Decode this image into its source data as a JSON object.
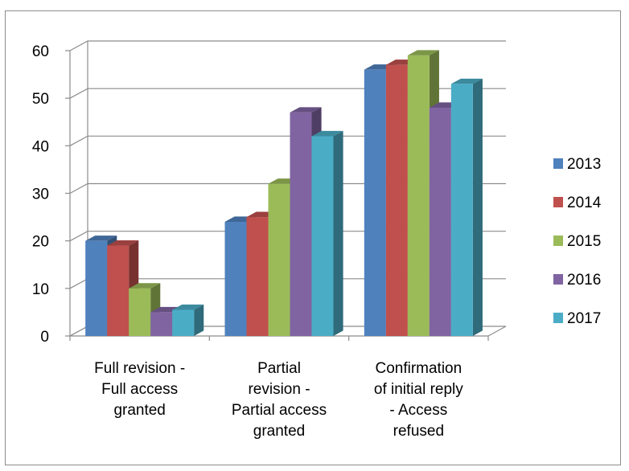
{
  "chart_data": {
    "type": "bar",
    "variant": "3d-clustered-column",
    "categories": [
      [
        "Full revision -",
        "Full access",
        "granted"
      ],
      [
        "Partial",
        "revision -",
        "Partial access",
        "granted"
      ],
      [
        "Confirmation",
        "of initial reply",
        "- Access",
        "refused"
      ]
    ],
    "series": [
      {
        "name": "2013",
        "color": "#4F81BD",
        "values": [
          20,
          24,
          56
        ]
      },
      {
        "name": "2014",
        "color": "#C0504D",
        "values": [
          19,
          25,
          57
        ]
      },
      {
        "name": "2015",
        "color": "#9BBB59",
        "values": [
          10,
          32,
          59
        ]
      },
      {
        "name": "2016",
        "color": "#8064A2",
        "values": [
          5,
          47,
          48
        ]
      },
      {
        "name": "2017",
        "color": "#4BACC6",
        "values": [
          5.5,
          42,
          53
        ]
      }
    ],
    "ylim": [
      0,
      60
    ],
    "yticks": [
      "0",
      "10",
      "20",
      "30",
      "40",
      "50",
      "60"
    ],
    "grid": true,
    "legend_position": "right"
  }
}
